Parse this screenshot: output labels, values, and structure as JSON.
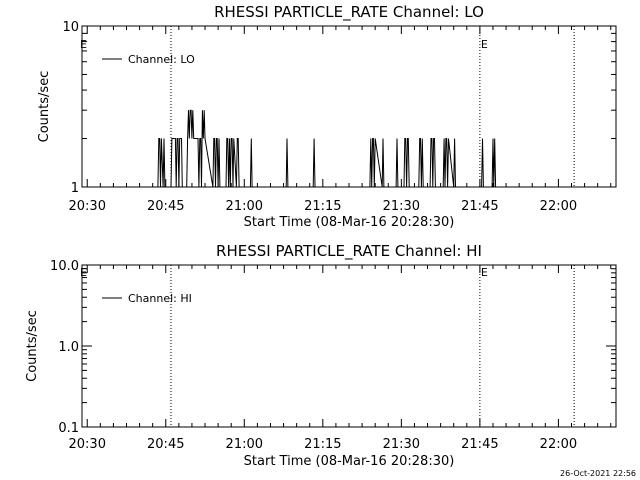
{
  "footer_timestamp": "26-Oct-2021 22:56",
  "chart_data": [
    {
      "type": "line",
      "title": "RHESSI PARTICLE_RATE Channel: LO",
      "xlabel": "Start Time (08-Mar-16 20:28:30)",
      "ylabel": "Counts/sec",
      "y_scale": "log",
      "ylim": [
        1,
        10
      ],
      "yticks": [
        {
          "value": 1,
          "label": "1"
        },
        {
          "value": 10,
          "label": "10"
        }
      ],
      "xlim": [
        "20:29:00",
        "22:11:00"
      ],
      "xticks": [
        "20:30",
        "20:45",
        "21:00",
        "21:15",
        "21:30",
        "21:45",
        "22:00"
      ],
      "legend": "upper-left",
      "series": [
        {
          "name": "Channel: LO",
          "color": "#000000",
          "x": [
            "20:43:30",
            "20:43:40",
            "20:43:50",
            "20:44:00",
            "20:44:10",
            "20:44:30",
            "20:44:40",
            "20:44:50",
            "20:46:00",
            "20:46:10",
            "20:46:50",
            "20:47:00",
            "20:47:10",
            "20:47:20",
            "20:47:30",
            "20:47:40",
            "20:48:00",
            "20:48:10",
            "20:49:00",
            "20:49:10",
            "20:49:20",
            "20:49:30",
            "20:49:40",
            "20:49:50",
            "20:50:00",
            "20:50:10",
            "20:50:20",
            "20:50:30",
            "20:51:00",
            "20:51:10",
            "20:51:20",
            "20:51:30",
            "20:51:40",
            "20:51:50",
            "20:52:00",
            "20:52:10",
            "20:52:20",
            "20:52:30",
            "20:54:00",
            "20:54:10",
            "20:54:20",
            "20:54:30",
            "20:54:40",
            "20:54:50",
            "20:55:00",
            "20:55:10",
            "20:55:20",
            "20:56:30",
            "20:56:40",
            "20:56:50",
            "20:57:00",
            "20:57:10",
            "20:57:20",
            "20:57:30",
            "20:57:40",
            "20:57:50",
            "20:58:00",
            "20:58:30",
            "20:58:40",
            "20:58:50",
            "20:59:00",
            "20:59:10",
            "21:01:10",
            "21:01:20",
            "21:01:30",
            "21:08:00",
            "21:08:10",
            "21:08:20",
            "21:13:10",
            "21:13:20",
            "21:13:30",
            "21:24:00",
            "21:24:10",
            "21:24:20",
            "21:24:30",
            "21:24:40",
            "21:24:50",
            "21:25:00",
            "21:26:20",
            "21:26:30",
            "21:26:40",
            "21:29:00",
            "21:29:10",
            "21:29:20",
            "21:30:30",
            "21:30:40",
            "21:30:50",
            "21:31:00",
            "21:31:10",
            "21:31:20",
            "21:31:30",
            "21:33:20",
            "21:33:30",
            "21:33:40",
            "21:33:50",
            "21:34:00",
            "21:34:10",
            "21:35:30",
            "21:35:40",
            "21:35:50",
            "21:36:00",
            "21:36:10",
            "21:36:20",
            "21:36:30",
            "21:38:00",
            "21:38:10",
            "21:38:20",
            "21:38:30",
            "21:38:40",
            "21:38:50",
            "21:39:00",
            "21:40:00",
            "21:40:10",
            "21:40:20",
            "21:45:20",
            "21:45:30",
            "21:45:40",
            "21:47:20",
            "21:47:30",
            "21:47:40",
            "21:47:50",
            "21:48:00"
          ],
          "y": [
            1,
            2,
            2,
            1,
            2,
            1,
            2,
            1,
            1,
            2,
            2,
            1,
            2,
            2,
            1,
            2,
            2,
            1,
            1,
            2,
            3,
            2,
            3,
            3,
            2,
            3,
            2,
            2,
            2,
            2,
            1,
            2,
            2,
            1,
            3,
            2,
            3,
            2,
            1,
            2,
            2,
            1,
            2,
            2,
            1,
            2,
            1,
            1,
            2,
            2,
            1,
            2,
            1,
            2,
            2,
            1,
            2,
            1,
            2,
            2,
            1,
            1,
            1,
            2,
            1,
            1,
            2,
            1,
            1,
            2,
            1,
            1,
            2,
            1,
            2,
            2,
            1,
            2,
            1,
            2,
            1,
            1,
            2,
            1,
            1,
            2,
            2,
            1,
            2,
            2,
            1,
            1,
            2,
            2,
            1,
            2,
            1,
            1,
            2,
            2,
            1,
            2,
            2,
            1,
            1,
            2,
            1,
            2,
            2,
            1,
            2,
            1,
            2,
            1,
            1,
            2,
            1,
            1,
            2,
            1,
            2,
            1
          ]
        }
      ],
      "markers": [
        {
          "time": "20:46:00",
          "label": ""
        },
        {
          "time": "21:45:00",
          "label": "E"
        },
        {
          "time": "22:03:00",
          "label": ""
        }
      ],
      "corner_label": "E"
    },
    {
      "type": "line",
      "title": "RHESSI PARTICLE_RATE Channel: HI",
      "xlabel": "Start Time (08-Mar-16 20:28:30)",
      "ylabel": "Counts/sec",
      "y_scale": "log",
      "ylim": [
        0.1,
        10
      ],
      "yticks": [
        {
          "value": 0.1,
          "label": "0.1"
        },
        {
          "value": 1,
          "label": "1.0"
        },
        {
          "value": 10,
          "label": "10.0"
        }
      ],
      "xlim": [
        "20:29:00",
        "22:11:00"
      ],
      "xticks": [
        "20:30",
        "20:45",
        "21:00",
        "21:15",
        "21:30",
        "21:45",
        "22:00"
      ],
      "legend": "upper-left",
      "series": [
        {
          "name": "Channel: HI",
          "color": "#000000",
          "x": [],
          "y": []
        }
      ],
      "markers": [
        {
          "time": "20:46:00",
          "label": ""
        },
        {
          "time": "21:45:00",
          "label": "E"
        },
        {
          "time": "22:03:00",
          "label": ""
        }
      ],
      "corner_label": "E"
    }
  ]
}
